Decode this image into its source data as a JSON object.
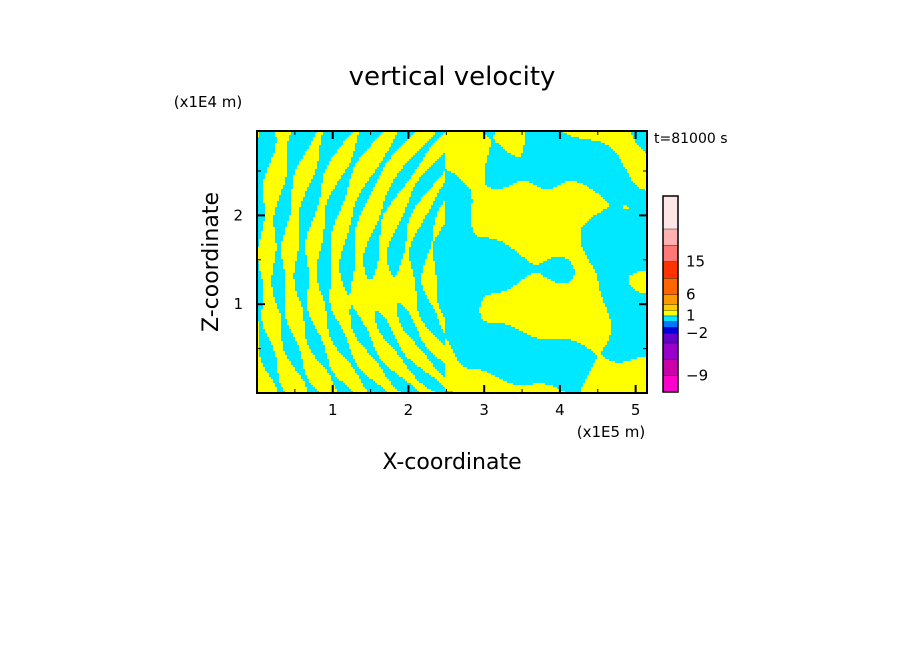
{
  "chart_data": {
    "type": "heatmap",
    "title": "vertical velocity",
    "xlabel": "X-coordinate",
    "ylabel": "Z-coordinate",
    "x_unit": "(x1E5 m)",
    "y_unit": "(x1E4 m)",
    "time_label": "t=81000 s",
    "xlim": [
      0,
      5.15
    ],
    "ylim": [
      0,
      2.95
    ],
    "x_ticks": [
      1,
      2,
      3,
      4,
      5
    ],
    "y_ticks": [
      1,
      2
    ],
    "x_tick_labels": [
      "1",
      "2",
      "3",
      "4",
      "5"
    ],
    "y_tick_labels": [
      "1",
      "2"
    ],
    "grid": false,
    "field_colors": {
      "positive": "#ffff00",
      "negative": "#00e8ff"
    },
    "colorbar": {
      "levels": [
        -12,
        -9,
        -6,
        -4,
        -2,
        -1,
        0,
        1,
        2,
        4,
        6,
        10,
        15,
        20,
        25
      ],
      "colors": [
        "#ff00cc",
        "#cc00aa",
        "#9900cc",
        "#6600cc",
        "#0000dd",
        "#0077ff",
        "#00e8ff",
        "#ffff00",
        "#ffcc00",
        "#ff9900",
        "#ff6600",
        "#ff3300",
        "#ff7777",
        "#ffb0b0",
        "#ffe6e6"
      ],
      "labels": [
        {
          "value": 15,
          "text": "15"
        },
        {
          "value": 6,
          "text": "6"
        },
        {
          "value": 1,
          "text": "1"
        },
        {
          "value": -2,
          "text": "−2"
        },
        {
          "value": -9,
          "text": "−9"
        }
      ]
    }
  }
}
